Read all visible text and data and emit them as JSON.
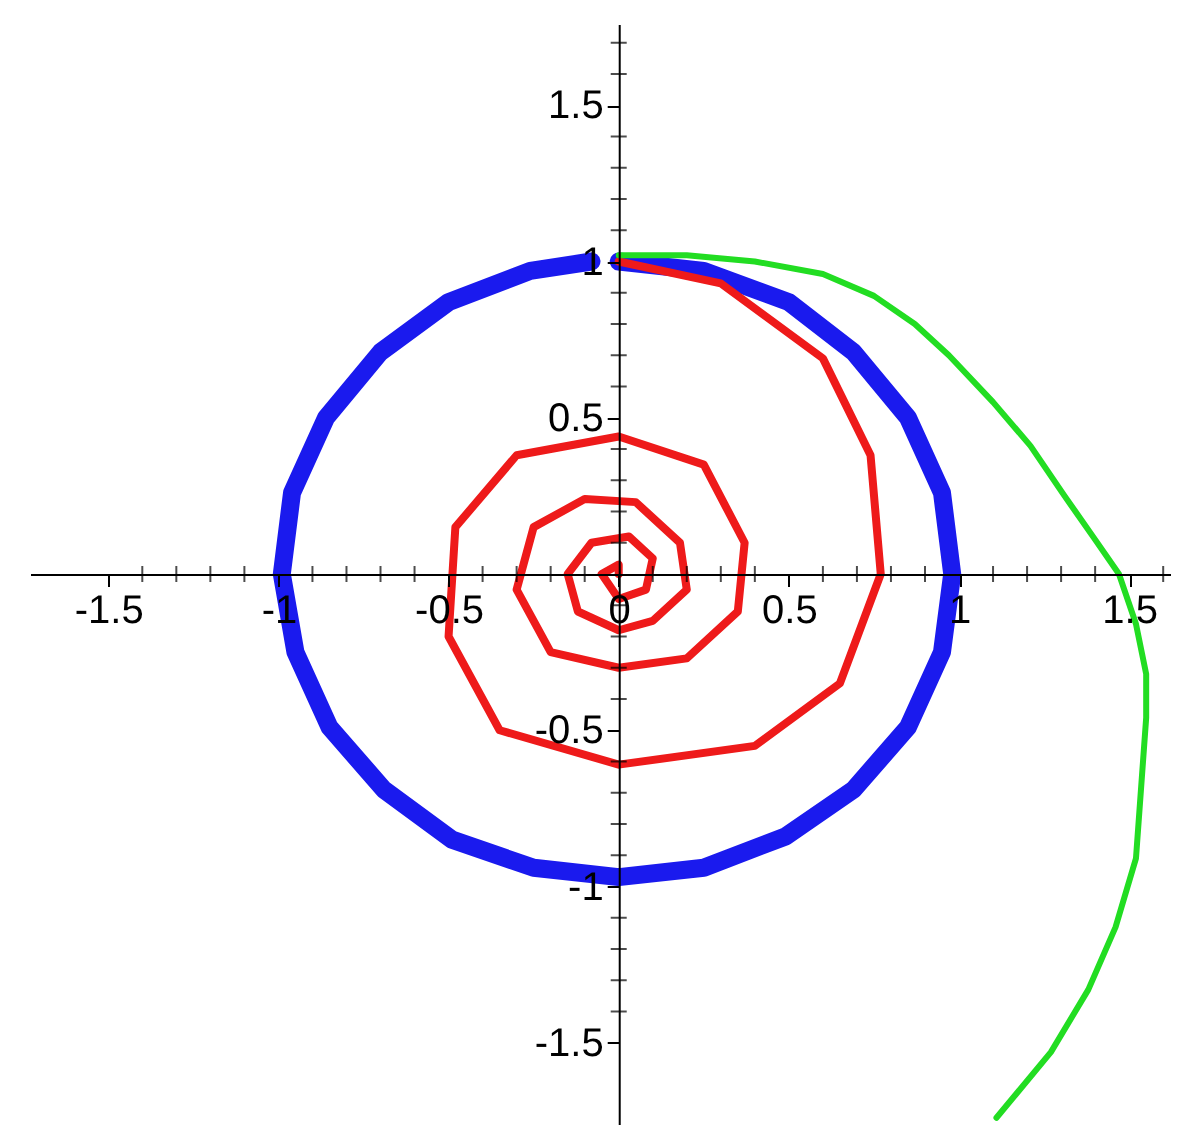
{
  "chart_data": {
    "type": "line",
    "xlim": [
      -1.73,
      1.62
    ],
    "ylim": [
      -1.76,
      1.76
    ],
    "xticks": [
      -1.5,
      {
        "value": -1.4,
        "label": null
      },
      {
        "value": -1.3,
        "label": null
      },
      {
        "value": -1.2,
        "label": null
      },
      {
        "value": -1.1,
        "label": null
      },
      -1,
      {
        "value": -0.9,
        "label": null
      },
      {
        "value": -0.8,
        "label": null
      },
      {
        "value": -0.7,
        "label": null
      },
      {
        "value": -0.6,
        "label": null
      },
      -0.5,
      {
        "value": -0.4,
        "label": null
      },
      {
        "value": -0.3,
        "label": null
      },
      {
        "value": -0.2,
        "label": null
      },
      {
        "value": -0.1,
        "label": null
      },
      0,
      {
        "value": 0.1,
        "label": null
      },
      {
        "value": 0.2,
        "label": null
      },
      {
        "value": 0.3,
        "label": null
      },
      {
        "value": 0.4,
        "label": null
      },
      0.5,
      {
        "value": 0.6,
        "label": null
      },
      {
        "value": 0.7,
        "label": null
      },
      {
        "value": 0.8,
        "label": null
      },
      {
        "value": 0.9,
        "label": null
      },
      1,
      {
        "value": 1.1,
        "label": null
      },
      {
        "value": 1.2,
        "label": null
      },
      {
        "value": 1.3,
        "label": null
      },
      {
        "value": 1.4,
        "label": null
      },
      1.5,
      {
        "value": 1.6,
        "label": null
      }
    ],
    "yticks": [
      -1.5,
      {
        "value": -1.4,
        "label": null
      },
      {
        "value": -1.3,
        "label": null
      },
      {
        "value": -1.2,
        "label": null
      },
      {
        "value": -1.1,
        "label": null
      },
      -1,
      {
        "value": -0.9,
        "label": null
      },
      {
        "value": -0.8,
        "label": null
      },
      {
        "value": -0.7,
        "label": null
      },
      {
        "value": -0.6,
        "label": null
      },
      -0.5,
      {
        "value": -0.4,
        "label": null
      },
      {
        "value": -0.3,
        "label": null
      },
      {
        "value": -0.2,
        "label": null
      },
      {
        "value": -0.1,
        "label": null
      },
      {
        "value": 0.1,
        "label": null
      },
      {
        "value": 0.2,
        "label": null
      },
      {
        "value": 0.3,
        "label": null
      },
      {
        "value": 0.4,
        "label": null
      },
      0.5,
      {
        "value": 0.6,
        "label": null
      },
      {
        "value": 0.7,
        "label": null
      },
      {
        "value": 0.8,
        "label": null
      },
      {
        "value": 0.9,
        "label": null
      },
      1,
      {
        "value": 1.1,
        "label": null
      },
      {
        "value": 1.2,
        "label": null
      },
      {
        "value": 1.3,
        "label": null
      },
      {
        "value": 1.4,
        "label": null
      },
      1.5,
      {
        "value": 1.6,
        "label": null
      },
      {
        "value": 1.7,
        "label": null
      }
    ],
    "marker": "none",
    "line_style": "solid",
    "series": [
      {
        "color": "#1a1aee",
        "x": [
          0,
          0.25,
          0.5,
          0.69,
          0.85,
          0.95,
          0.98,
          0.95,
          0.85,
          0.69,
          0.49,
          0.25,
          0,
          -0.25,
          -0.49,
          -0.69,
          -0.85,
          -0.95,
          -0.99,
          -0.96,
          -0.86,
          -0.7,
          -0.5,
          -0.26,
          -0.08
        ],
        "values": [
          1,
          0.97,
          0.87,
          0.71,
          0.5,
          0.26,
          0,
          -0.25,
          -0.49,
          -0.69,
          -0.84,
          -0.94,
          -0.97,
          -0.94,
          -0.85,
          -0.69,
          -0.49,
          -0.25,
          0,
          0.26,
          0.5,
          0.71,
          0.87,
          0.97,
          1.0
        ]
      },
      {
        "color": "#ee1a1a",
        "x": [
          0,
          0.3,
          0.6,
          0.74,
          0.77,
          0.65,
          0.4,
          0,
          -0.35,
          -0.5,
          -0.48,
          -0.3,
          0,
          0.25,
          0.37,
          0.35,
          0.2,
          0,
          -0.2,
          -0.3,
          -0.25,
          -0.1,
          0.05,
          0.18,
          0.2,
          0.1,
          0,
          -0.12,
          -0.15,
          -0.08,
          0.03,
          0.1,
          0.08,
          0,
          -0.05,
          0,
          0
        ],
        "values": [
          1,
          0.93,
          0.69,
          0.38,
          0,
          -0.35,
          -0.55,
          -0.61,
          -0.5,
          -0.2,
          0.15,
          0.38,
          0.44,
          0.35,
          0.1,
          -0.12,
          -0.27,
          -0.3,
          -0.25,
          -0.05,
          0.15,
          0.24,
          0.23,
          0.1,
          -0.05,
          -0.15,
          -0.18,
          -0.12,
          0,
          0.1,
          0.12,
          0.05,
          -0.05,
          -0.08,
          0,
          0.03,
          0
        ]
      },
      {
        "color": "#22dd22",
        "x": [
          0,
          0.2,
          0.4,
          0.6,
          0.75,
          0.87,
          0.97,
          1.1,
          1.21,
          1.31,
          1.4,
          1.47,
          1.52,
          1.55,
          1.55,
          1.52,
          1.46,
          1.38,
          1.27,
          1.11
        ],
        "values": [
          1.02,
          1.02,
          1.0,
          0.96,
          0.89,
          0.8,
          0.7,
          0.55,
          0.41,
          0.25,
          0.11,
          0,
          -0.16,
          -0.32,
          -0.46,
          -0.91,
          -1.13,
          -1.33,
          -1.53,
          -1.74
        ]
      }
    ]
  }
}
